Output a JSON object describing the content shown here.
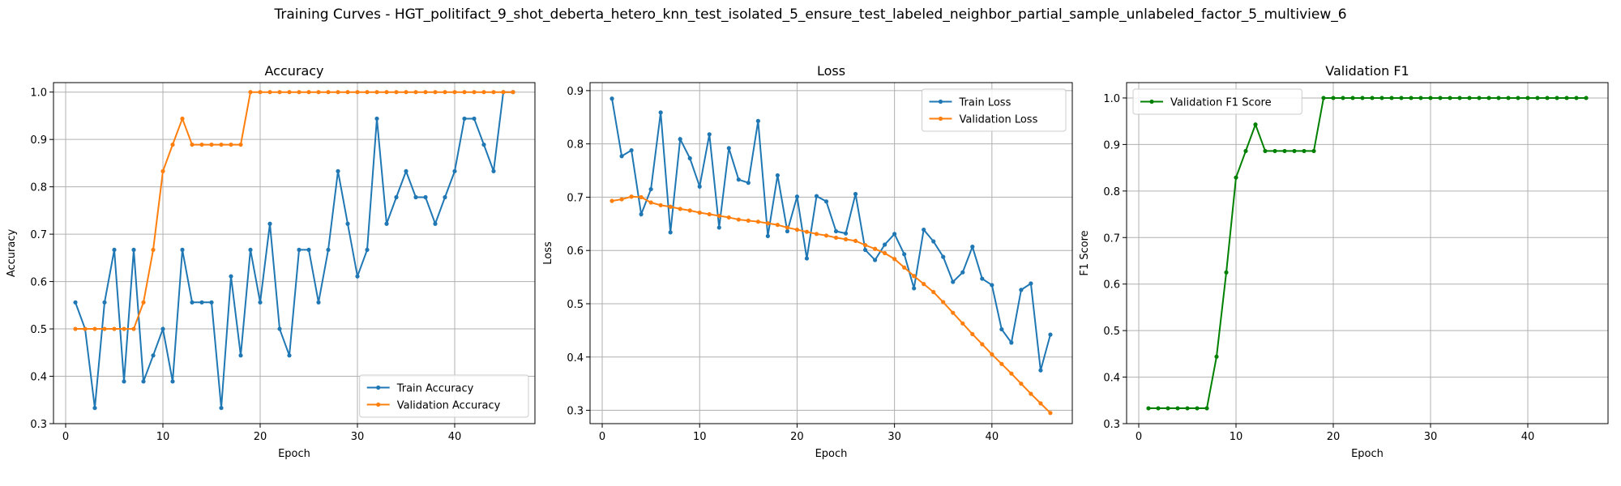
{
  "figure": {
    "title": "Training Curves - HGT_politifact_9_shot_deberta_hetero_knn_test_isolated_5_ensure_test_labeled_neighbor_partial_sample_unlabeled_factor_5_multiview_6"
  },
  "chart_data": [
    {
      "type": "line",
      "title": "Accuracy",
      "xlabel": "Epoch",
      "ylabel": "Accuracy",
      "xlim": [
        -1.25,
        48.25
      ],
      "ylim": [
        0.3,
        1.02
      ],
      "xticks": [
        0,
        10,
        20,
        30,
        40
      ],
      "yticks": [
        0.3,
        0.4,
        0.5,
        0.6,
        0.7,
        0.8,
        0.9,
        1.0
      ],
      "grid": true,
      "legend_position": "lower-right",
      "x": [
        1,
        2,
        3,
        4,
        5,
        6,
        7,
        8,
        9,
        10,
        11,
        12,
        13,
        14,
        15,
        16,
        17,
        18,
        19,
        20,
        21,
        22,
        23,
        24,
        25,
        26,
        27,
        28,
        29,
        30,
        31,
        32,
        33,
        34,
        35,
        36,
        37,
        38,
        39,
        40,
        41,
        42,
        43,
        44,
        45,
        46
      ],
      "series": [
        {
          "name": "Train Accuracy",
          "color": "#1f77b4",
          "values": [
            0.556,
            0.5,
            0.333,
            0.556,
            0.667,
            0.389,
            0.667,
            0.389,
            0.444,
            0.5,
            0.389,
            0.667,
            0.556,
            0.556,
            0.556,
            0.333,
            0.611,
            0.444,
            0.667,
            0.556,
            0.722,
            0.5,
            0.444,
            0.667,
            0.667,
            0.556,
            0.667,
            0.833,
            0.722,
            0.611,
            0.667,
            0.944,
            0.722,
            0.778,
            0.833,
            0.778,
            0.778,
            0.722,
            0.778,
            0.833,
            0.944,
            0.944,
            0.889,
            0.833,
            1.0,
            1.0
          ]
        },
        {
          "name": "Validation Accuracy",
          "color": "#ff7f0e",
          "values": [
            0.5,
            0.5,
            0.5,
            0.5,
            0.5,
            0.5,
            0.5,
            0.556,
            0.667,
            0.833,
            0.889,
            0.944,
            0.889,
            0.889,
            0.889,
            0.889,
            0.889,
            0.889,
            1.0,
            1.0,
            1.0,
            1.0,
            1.0,
            1.0,
            1.0,
            1.0,
            1.0,
            1.0,
            1.0,
            1.0,
            1.0,
            1.0,
            1.0,
            1.0,
            1.0,
            1.0,
            1.0,
            1.0,
            1.0,
            1.0,
            1.0,
            1.0,
            1.0,
            1.0,
            1.0,
            1.0
          ]
        }
      ]
    },
    {
      "type": "line",
      "title": "Loss",
      "xlabel": "Epoch",
      "ylabel": "Loss",
      "xlim": [
        -1.25,
        48.25
      ],
      "ylim": [
        0.275,
        0.915
      ],
      "xticks": [
        0,
        10,
        20,
        30,
        40
      ],
      "yticks": [
        0.3,
        0.4,
        0.5,
        0.6,
        0.7,
        0.8,
        0.9
      ],
      "grid": true,
      "legend_position": "upper-right",
      "x": [
        1,
        2,
        3,
        4,
        5,
        6,
        7,
        8,
        9,
        10,
        11,
        12,
        13,
        14,
        15,
        16,
        17,
        18,
        19,
        20,
        21,
        22,
        23,
        24,
        25,
        26,
        27,
        28,
        29,
        30,
        31,
        32,
        33,
        34,
        35,
        36,
        37,
        38,
        39,
        40,
        41,
        42,
        43,
        44,
        45,
        46
      ],
      "series": [
        {
          "name": "Train Loss",
          "color": "#1f77b4",
          "values": [
            0.885,
            0.777,
            0.788,
            0.668,
            0.715,
            0.859,
            0.634,
            0.809,
            0.773,
            0.72,
            0.818,
            0.643,
            0.792,
            0.733,
            0.727,
            0.843,
            0.627,
            0.741,
            0.636,
            0.701,
            0.585,
            0.702,
            0.692,
            0.636,
            0.632,
            0.706,
            0.601,
            0.582,
            0.611,
            0.631,
            0.593,
            0.529,
            0.639,
            0.617,
            0.588,
            0.541,
            0.559,
            0.607,
            0.547,
            0.535,
            0.452,
            0.427,
            0.526,
            0.538,
            0.375,
            0.442
          ]
        },
        {
          "name": "Validation Loss",
          "color": "#ff7f0e",
          "values": [
            0.693,
            0.696,
            0.701,
            0.7,
            0.69,
            0.685,
            0.682,
            0.678,
            0.675,
            0.671,
            0.668,
            0.665,
            0.662,
            0.658,
            0.656,
            0.654,
            0.651,
            0.648,
            0.643,
            0.639,
            0.635,
            0.631,
            0.628,
            0.624,
            0.621,
            0.618,
            0.61,
            0.603,
            0.595,
            0.584,
            0.568,
            0.552,
            0.537,
            0.522,
            0.503,
            0.483,
            0.463,
            0.443,
            0.424,
            0.405,
            0.387,
            0.369,
            0.35,
            0.331,
            0.313,
            0.295
          ]
        }
      ]
    },
    {
      "type": "line",
      "title": "Validation F1",
      "xlabel": "Epoch",
      "ylabel": "F1 Score",
      "xlim": [
        -1.25,
        48.25
      ],
      "ylim": [
        0.3,
        1.033
      ],
      "xticks": [
        0,
        10,
        20,
        30,
        40
      ],
      "yticks": [
        0.3,
        0.4,
        0.5,
        0.6,
        0.7,
        0.8,
        0.9,
        1.0
      ],
      "grid": true,
      "legend_position": "upper-left",
      "x": [
        1,
        2,
        3,
        4,
        5,
        6,
        7,
        8,
        9,
        10,
        11,
        12,
        13,
        14,
        15,
        16,
        17,
        18,
        19,
        20,
        21,
        22,
        23,
        24,
        25,
        26,
        27,
        28,
        29,
        30,
        31,
        32,
        33,
        34,
        35,
        36,
        37,
        38,
        39,
        40,
        41,
        42,
        43,
        44,
        45,
        46
      ],
      "series": [
        {
          "name": "Validation F1 Score",
          "color": "#008000",
          "values": [
            0.333,
            0.333,
            0.333,
            0.333,
            0.333,
            0.333,
            0.333,
            0.444,
            0.625,
            0.829,
            0.886,
            0.943,
            0.886,
            0.886,
            0.886,
            0.886,
            0.886,
            0.886,
            1.0,
            1.0,
            1.0,
            1.0,
            1.0,
            1.0,
            1.0,
            1.0,
            1.0,
            1.0,
            1.0,
            1.0,
            1.0,
            1.0,
            1.0,
            1.0,
            1.0,
            1.0,
            1.0,
            1.0,
            1.0,
            1.0,
            1.0,
            1.0,
            1.0,
            1.0,
            1.0,
            1.0
          ]
        }
      ]
    }
  ]
}
